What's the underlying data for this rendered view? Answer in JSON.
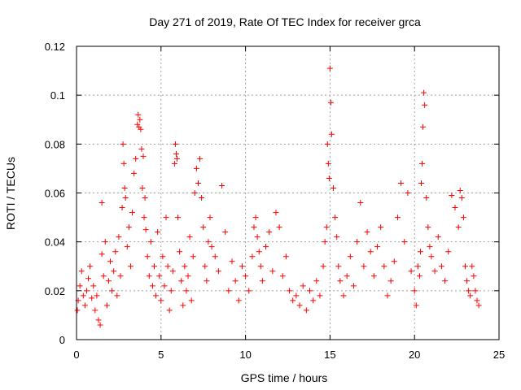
{
  "chart_data": {
    "type": "scatter",
    "title": "Day 271 of 2019, Rate Of TEC Index for receiver grca",
    "xlabel": "GPS time / hours",
    "ylabel": "ROTI / TECUs",
    "xlim": [
      0,
      25
    ],
    "ylim": [
      0,
      0.12
    ],
    "xticks": [
      0,
      5,
      10,
      15,
      20,
      25
    ],
    "xtick_labels": [
      "0",
      "5",
      "10",
      "15",
      "20",
      "25"
    ],
    "yticks": [
      0,
      0.02,
      0.04,
      0.06,
      0.08,
      0.1,
      0.12
    ],
    "ytick_labels": [
      "0",
      "0.02",
      "0.04",
      "0.06",
      "0.08",
      "0.1",
      "0.12"
    ],
    "grid": true,
    "marker": "+",
    "color": "#ff0000",
    "series": [
      {
        "name": "ROTI",
        "x": [
          0.05,
          0.1,
          0.2,
          0.3,
          0.4,
          0.5,
          0.6,
          0.7,
          0.8,
          0.9,
          1.0,
          1.1,
          1.2,
          1.3,
          1.4,
          1.5,
          1.5,
          1.6,
          1.7,
          1.8,
          1.9,
          2.0,
          2.1,
          2.2,
          2.3,
          2.4,
          2.5,
          2.6,
          2.7,
          2.75,
          2.8,
          2.85,
          2.9,
          3.0,
          3.1,
          3.2,
          3.3,
          3.4,
          3.5,
          3.6,
          3.65,
          3.7,
          3.75,
          3.8,
          3.85,
          3.9,
          3.95,
          4.0,
          4.05,
          4.1,
          4.2,
          4.3,
          4.4,
          4.5,
          4.6,
          4.7,
          4.8,
          4.9,
          5.0,
          5.1,
          5.2,
          5.3,
          5.4,
          5.5,
          5.6,
          5.7,
          5.8,
          5.85,
          5.9,
          5.95,
          6.0,
          6.1,
          6.2,
          6.3,
          6.4,
          6.5,
          6.6,
          6.7,
          6.8,
          6.9,
          7.0,
          7.1,
          7.2,
          7.3,
          7.4,
          7.5,
          7.6,
          7.7,
          7.8,
          7.9,
          8.0,
          8.2,
          8.4,
          8.6,
          8.8,
          9.0,
          9.2,
          9.4,
          9.6,
          9.8,
          10.0,
          10.2,
          10.4,
          10.5,
          10.6,
          10.7,
          10.8,
          10.9,
          11.0,
          11.2,
          11.4,
          11.6,
          11.8,
          12.0,
          12.2,
          12.4,
          12.6,
          12.8,
          13.0,
          13.2,
          13.4,
          13.6,
          13.8,
          14.0,
          14.2,
          14.4,
          14.6,
          14.7,
          14.8,
          14.85,
          14.9,
          14.95,
          15.0,
          15.05,
          15.1,
          15.2,
          15.3,
          15.4,
          15.5,
          15.6,
          15.8,
          16.0,
          16.2,
          16.4,
          16.6,
          16.8,
          17.0,
          17.2,
          17.4,
          17.6,
          17.8,
          18.0,
          18.2,
          18.4,
          18.6,
          18.8,
          19.0,
          19.2,
          19.4,
          19.6,
          19.8,
          20.0,
          20.1,
          20.2,
          20.3,
          20.35,
          20.4,
          20.45,
          20.5,
          20.55,
          20.6,
          20.7,
          20.8,
          20.9,
          21.0,
          21.2,
          21.4,
          21.6,
          21.8,
          22.0,
          22.2,
          22.4,
          22.6,
          22.7,
          22.8,
          22.9,
          23.0,
          23.1,
          23.2,
          23.3,
          23.4,
          23.5,
          23.6,
          23.7,
          23.8
        ],
        "y": [
          0.012,
          0.016,
          0.022,
          0.028,
          0.018,
          0.014,
          0.02,
          0.025,
          0.03,
          0.017,
          0.022,
          0.012,
          0.018,
          0.008,
          0.006,
          0.035,
          0.056,
          0.026,
          0.04,
          0.014,
          0.024,
          0.032,
          0.02,
          0.028,
          0.036,
          0.018,
          0.042,
          0.026,
          0.054,
          0.08,
          0.072,
          0.062,
          0.058,
          0.038,
          0.046,
          0.03,
          0.052,
          0.068,
          0.074,
          0.088,
          0.092,
          0.087,
          0.09,
          0.086,
          0.078,
          0.062,
          0.075,
          0.05,
          0.058,
          0.045,
          0.034,
          0.026,
          0.04,
          0.022,
          0.03,
          0.018,
          0.044,
          0.026,
          0.016,
          0.034,
          0.022,
          0.05,
          0.03,
          0.012,
          0.02,
          0.028,
          0.072,
          0.08,
          0.076,
          0.074,
          0.05,
          0.036,
          0.024,
          0.014,
          0.03,
          0.02,
          0.026,
          0.042,
          0.016,
          0.034,
          0.06,
          0.07,
          0.064,
          0.074,
          0.058,
          0.046,
          0.03,
          0.024,
          0.04,
          0.05,
          0.038,
          0.034,
          0.028,
          0.063,
          0.044,
          0.02,
          0.032,
          0.024,
          0.016,
          0.03,
          0.026,
          0.02,
          0.034,
          0.046,
          0.05,
          0.042,
          0.036,
          0.03,
          0.024,
          0.038,
          0.044,
          0.028,
          0.052,
          0.046,
          0.026,
          0.034,
          0.02,
          0.016,
          0.018,
          0.014,
          0.022,
          0.012,
          0.02,
          0.016,
          0.024,
          0.018,
          0.03,
          0.04,
          0.046,
          0.08,
          0.072,
          0.066,
          0.111,
          0.097,
          0.084,
          0.062,
          0.05,
          0.042,
          0.03,
          0.024,
          0.018,
          0.026,
          0.034,
          0.022,
          0.04,
          0.056,
          0.03,
          0.044,
          0.036,
          0.026,
          0.038,
          0.046,
          0.03,
          0.018,
          0.024,
          0.032,
          0.05,
          0.064,
          0.04,
          0.06,
          0.028,
          0.02,
          0.014,
          0.03,
          0.026,
          0.036,
          0.064,
          0.072,
          0.087,
          0.101,
          0.096,
          0.058,
          0.046,
          0.038,
          0.034,
          0.028,
          0.042,
          0.03,
          0.024,
          0.036,
          0.059,
          0.054,
          0.046,
          0.061,
          0.058,
          0.05,
          0.03,
          0.024,
          0.02,
          0.018,
          0.03,
          0.026,
          0.02,
          0.016,
          0.014
        ]
      }
    ]
  }
}
